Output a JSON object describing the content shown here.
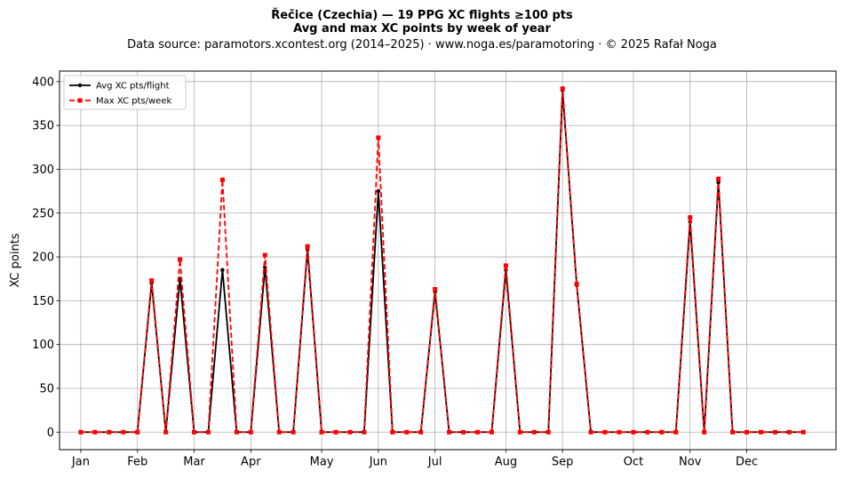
{
  "header": {
    "title": "Řečice (Czechia)  —  19 PPG XC flights ≥100 pts",
    "subtitle": "Avg and max XC points by week of year",
    "source": "Data source: paramotors.xcontest.org (2014–2025)  ·  www.noga.es/paramotoring  ·  © 2025 Rafał Noga"
  },
  "chart_data": {
    "type": "line",
    "ylabel": "XC points",
    "ylim": [
      -20,
      412
    ],
    "xlim": [
      -1.5,
      53.3
    ],
    "yticks": [
      0,
      50,
      100,
      150,
      200,
      250,
      300,
      350,
      400
    ],
    "xtick_positions": [
      0,
      4,
      8,
      12,
      17,
      21,
      25,
      30,
      34,
      39,
      43,
      47
    ],
    "xtick_labels": [
      "Jan",
      "Feb",
      "Mar",
      "Apr",
      "May",
      "Jun",
      "Jul",
      "Aug",
      "Sep",
      "Oct",
      "Nov",
      "Dec"
    ],
    "grid": true,
    "legend_position": "top-left",
    "x": [
      0,
      1,
      2,
      3,
      4,
      5,
      6,
      7,
      8,
      9,
      10,
      11,
      12,
      13,
      14,
      15,
      16,
      17,
      18,
      19,
      20,
      21,
      22,
      23,
      24,
      25,
      26,
      27,
      28,
      29,
      30,
      31,
      32,
      33,
      34,
      35,
      36,
      37,
      38,
      39,
      40,
      41,
      42,
      43,
      44,
      45,
      46,
      47,
      48,
      49,
      50,
      51
    ],
    "series": [
      {
        "name": "Avg XC pts/flight",
        "color": "#000000",
        "style": "solid",
        "marker": "circle",
        "values": [
          0,
          0,
          0,
          0,
          0,
          170,
          0,
          175,
          0,
          0,
          185,
          0,
          0,
          188,
          0,
          0,
          208,
          0,
          0,
          0,
          0,
          275,
          0,
          0,
          0,
          160,
          0,
          0,
          0,
          0,
          185,
          0,
          0,
          0,
          390,
          168,
          0,
          0,
          0,
          0,
          0,
          0,
          0,
          240,
          0,
          285,
          0,
          0,
          0,
          0,
          0,
          0
        ]
      },
      {
        "name": "Max XC pts/week",
        "color": "#ff0000",
        "style": "dashed",
        "marker": "square",
        "values": [
          0,
          0,
          0,
          0,
          0,
          173,
          0,
          197,
          0,
          0,
          288,
          0,
          0,
          202,
          0,
          0,
          212,
          0,
          0,
          0,
          0,
          336,
          0,
          0,
          0,
          163,
          0,
          0,
          0,
          0,
          190,
          0,
          0,
          0,
          392,
          169,
          0,
          0,
          0,
          0,
          0,
          0,
          0,
          245,
          0,
          289,
          0,
          0,
          0,
          0,
          0,
          0
        ]
      }
    ]
  }
}
